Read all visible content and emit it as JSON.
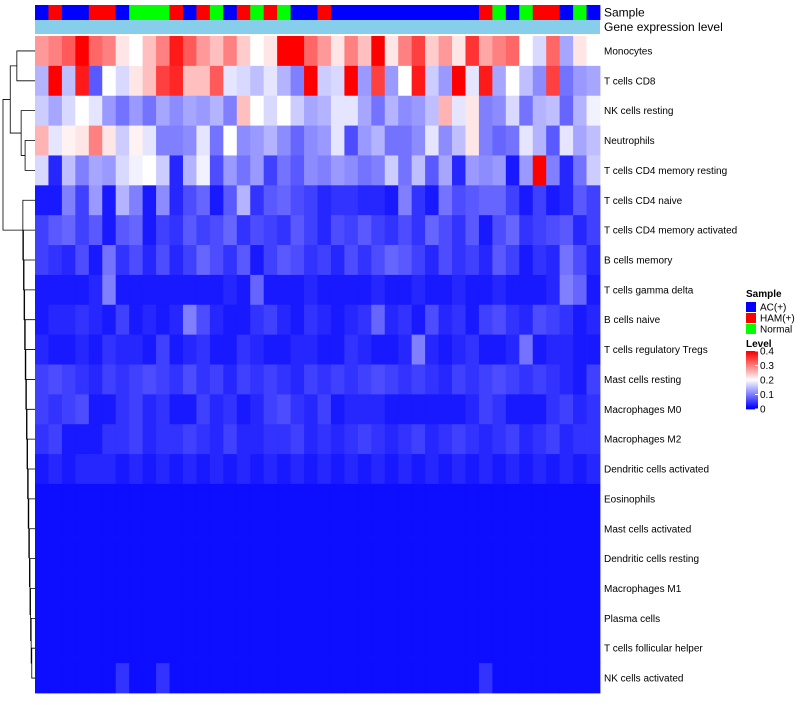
{
  "chart_data": {
    "type": "heatmap",
    "annotation_tracks": [
      "Sample",
      "Gene expression level"
    ],
    "annotation_color": "#87CEEB",
    "sample_groups": [
      "AC(+)",
      "HAM(+)",
      "Normal"
    ],
    "sample_group_colors": {
      "AC(+)": "#0000FF",
      "HAM(+)": "#FF0000",
      "Normal": "#00FF00"
    },
    "sample_annotation": [
      0,
      1,
      0,
      0,
      1,
      1,
      0,
      2,
      2,
      2,
      1,
      0,
      1,
      2,
      0,
      1,
      2,
      1,
      2,
      0,
      0,
      1,
      0,
      0,
      0,
      0,
      0,
      0,
      0,
      0,
      0,
      0,
      0,
      1,
      2,
      0,
      2,
      1,
      1,
      0,
      2,
      0
    ],
    "rows": [
      "Monocytes",
      "T cells CD8",
      "NK cells resting",
      "Neutrophils",
      "T cells CD4 memory resting",
      "T cells CD4 naive",
      "T cells CD4 memory activated",
      "B cells memory",
      "T cells gamma delta",
      "B cells naive",
      "T cells regulatory  Tregs",
      "Mast cells resting",
      "Macrophages M0",
      "Macrophages M2",
      "Dendritic cells activated",
      "Eosinophils",
      "Mast cells activated",
      "Dendritic cells resting",
      "Macrophages M1",
      "Plasma cells",
      "T cells follicular helper",
      "NK cells activated"
    ],
    "values": [
      [
        0.28,
        0.3,
        0.33,
        0.4,
        0.32,
        0.3,
        0.22,
        0.2,
        0.25,
        0.3,
        0.38,
        0.33,
        0.28,
        0.25,
        0.3,
        0.24,
        0.2,
        0.22,
        0.4,
        0.4,
        0.32,
        0.28,
        0.22,
        0.3,
        0.25,
        0.4,
        0.22,
        0.3,
        0.35,
        0.24,
        0.28,
        0.22,
        0.36,
        0.27,
        0.3,
        0.32,
        0.2,
        0.17,
        0.32,
        0.13,
        0.22,
        0.2
      ],
      [
        0.14,
        0.4,
        0.15,
        0.38,
        0.07,
        0.2,
        0.17,
        0.22,
        0.25,
        0.35,
        0.37,
        0.25,
        0.25,
        0.33,
        0.18,
        0.17,
        0.15,
        0.18,
        0.14,
        0.1,
        0.4,
        0.16,
        0.17,
        0.4,
        0.12,
        0.35,
        0.12,
        0.2,
        0.38,
        0.16,
        0.12,
        0.4,
        0.18,
        0.38,
        0.13,
        0.2,
        0.15,
        0.11,
        0.35,
        0.09,
        0.12,
        0.13
      ],
      [
        0.16,
        0.13,
        0.17,
        0.2,
        0.18,
        0.12,
        0.09,
        0.12,
        0.09,
        0.13,
        0.11,
        0.13,
        0.12,
        0.14,
        0.1,
        0.25,
        0.2,
        0.17,
        0.2,
        0.16,
        0.13,
        0.14,
        0.18,
        0.18,
        0.13,
        0.09,
        0.14,
        0.11,
        0.12,
        0.15,
        0.26,
        0.18,
        0.22,
        0.1,
        0.11,
        0.17,
        0.09,
        0.14,
        0.15,
        0.08,
        0.14,
        0.19
      ],
      [
        0.26,
        0.18,
        0.21,
        0.22,
        0.3,
        0.22,
        0.16,
        0.21,
        0.18,
        0.1,
        0.1,
        0.11,
        0.18,
        0.09,
        0.2,
        0.11,
        0.12,
        0.14,
        0.11,
        0.08,
        0.11,
        0.12,
        0.18,
        0.06,
        0.12,
        0.14,
        0.09,
        0.09,
        0.11,
        0.18,
        0.11,
        0.15,
        0.22,
        0.1,
        0.08,
        0.09,
        0.18,
        0.14,
        0.07,
        0.18,
        0.13,
        0.15
      ],
      [
        0.17,
        0.03,
        0.15,
        0.1,
        0.13,
        0.12,
        0.17,
        0.19,
        0.2,
        0.16,
        0.03,
        0.14,
        0.19,
        0.06,
        0.12,
        0.09,
        0.12,
        0.05,
        0.09,
        0.07,
        0.11,
        0.1,
        0.12,
        0.11,
        0.09,
        0.1,
        0.16,
        0.09,
        0.15,
        0.07,
        0.13,
        0.03,
        0.12,
        0.11,
        0.12,
        0.02,
        0.12,
        0.4,
        0.1,
        0.03,
        0.09,
        0.16
      ],
      [
        0.02,
        0.02,
        0.1,
        0.05,
        0.12,
        0.02,
        0.14,
        0.1,
        0.02,
        0.11,
        0.03,
        0.06,
        0.08,
        0.02,
        0.07,
        0.14,
        0.04,
        0.07,
        0.08,
        0.06,
        0.05,
        0.03,
        0.04,
        0.04,
        0.03,
        0.03,
        0.02,
        0.1,
        0.04,
        0.02,
        0.09,
        0.06,
        0.07,
        0.08,
        0.08,
        0.05,
        0.02,
        0.05,
        0.02,
        0.03,
        0.07,
        0.05
      ],
      [
        0.05,
        0.07,
        0.08,
        0.05,
        0.07,
        0.02,
        0.07,
        0.08,
        0.02,
        0.05,
        0.04,
        0.07,
        0.05,
        0.06,
        0.08,
        0.04,
        0.06,
        0.05,
        0.04,
        0.07,
        0.05,
        0.03,
        0.06,
        0.05,
        0.07,
        0.05,
        0.04,
        0.06,
        0.04,
        0.08,
        0.06,
        0.04,
        0.07,
        0.02,
        0.06,
        0.08,
        0.04,
        0.05,
        0.06,
        0.07,
        0.03,
        0.05
      ],
      [
        0.05,
        0.04,
        0.03,
        0.06,
        0.02,
        0.09,
        0.04,
        0.06,
        0.03,
        0.06,
        0.03,
        0.05,
        0.08,
        0.06,
        0.04,
        0.07,
        0.02,
        0.05,
        0.07,
        0.06,
        0.04,
        0.05,
        0.03,
        0.06,
        0.04,
        0.06,
        0.08,
        0.07,
        0.05,
        0.03,
        0.06,
        0.04,
        0.05,
        0.03,
        0.07,
        0.05,
        0.02,
        0.04,
        0.03,
        0.09,
        0.06,
        0.03
      ],
      [
        0.02,
        0.02,
        0.02,
        0.02,
        0.03,
        0.1,
        0.02,
        0.02,
        0.02,
        0.02,
        0.02,
        0.02,
        0.02,
        0.02,
        0.03,
        0.02,
        0.08,
        0.02,
        0.02,
        0.02,
        0.03,
        0.02,
        0.02,
        0.02,
        0.02,
        0.03,
        0.02,
        0.02,
        0.03,
        0.02,
        0.02,
        0.03,
        0.02,
        0.02,
        0.03,
        0.02,
        0.02,
        0.02,
        0.03,
        0.1,
        0.08,
        0.02
      ],
      [
        0.02,
        0.03,
        0.03,
        0.04,
        0.03,
        0.02,
        0.05,
        0.02,
        0.03,
        0.02,
        0.03,
        0.1,
        0.06,
        0.03,
        0.02,
        0.02,
        0.04,
        0.05,
        0.03,
        0.02,
        0.04,
        0.03,
        0.02,
        0.03,
        0.04,
        0.08,
        0.03,
        0.04,
        0.02,
        0.06,
        0.03,
        0.04,
        0.02,
        0.05,
        0.06,
        0.04,
        0.03,
        0.06,
        0.05,
        0.04,
        0.02,
        0.03
      ],
      [
        0.03,
        0.02,
        0.02,
        0.03,
        0.02,
        0.04,
        0.03,
        0.03,
        0.02,
        0.05,
        0.02,
        0.03,
        0.04,
        0.02,
        0.02,
        0.04,
        0.03,
        0.02,
        0.02,
        0.03,
        0.03,
        0.02,
        0.02,
        0.04,
        0.03,
        0.02,
        0.02,
        0.03,
        0.1,
        0.03,
        0.02,
        0.03,
        0.04,
        0.02,
        0.02,
        0.03,
        0.09,
        0.02,
        0.03,
        0.03,
        0.02,
        0.02
      ],
      [
        0.05,
        0.06,
        0.05,
        0.04,
        0.03,
        0.05,
        0.04,
        0.05,
        0.06,
        0.05,
        0.04,
        0.06,
        0.04,
        0.05,
        0.03,
        0.05,
        0.04,
        0.05,
        0.04,
        0.03,
        0.05,
        0.04,
        0.05,
        0.04,
        0.05,
        0.06,
        0.05,
        0.04,
        0.05,
        0.04,
        0.03,
        0.05,
        0.04,
        0.05,
        0.06,
        0.05,
        0.04,
        0.05,
        0.04,
        0.03,
        0.02,
        0.05
      ],
      [
        0.05,
        0.04,
        0.05,
        0.06,
        0.02,
        0.02,
        0.04,
        0.05,
        0.03,
        0.04,
        0.02,
        0.02,
        0.05,
        0.03,
        0.04,
        0.02,
        0.03,
        0.05,
        0.06,
        0.04,
        0.03,
        0.05,
        0.02,
        0.03,
        0.03,
        0.03,
        0.02,
        0.02,
        0.02,
        0.02,
        0.02,
        0.02,
        0.03,
        0.05,
        0.04,
        0.02,
        0.02,
        0.02,
        0.04,
        0.05,
        0.03,
        0.04
      ],
      [
        0.04,
        0.05,
        0.02,
        0.02,
        0.02,
        0.04,
        0.04,
        0.05,
        0.03,
        0.04,
        0.04,
        0.05,
        0.04,
        0.03,
        0.05,
        0.03,
        0.03,
        0.04,
        0.04,
        0.05,
        0.03,
        0.04,
        0.03,
        0.04,
        0.05,
        0.04,
        0.03,
        0.04,
        0.05,
        0.03,
        0.04,
        0.05,
        0.04,
        0.03,
        0.04,
        0.05,
        0.03,
        0.04,
        0.05,
        0.03,
        0.04,
        0.04
      ],
      [
        0.02,
        0.03,
        0.02,
        0.03,
        0.03,
        0.03,
        0.02,
        0.03,
        0.02,
        0.03,
        0.02,
        0.03,
        0.02,
        0.03,
        0.02,
        0.03,
        0.02,
        0.03,
        0.02,
        0.03,
        0.02,
        0.03,
        0.02,
        0.03,
        0.02,
        0.03,
        0.02,
        0.03,
        0.02,
        0.03,
        0.02,
        0.03,
        0.02,
        0.03,
        0.02,
        0.03,
        0.02,
        0.03,
        0.02,
        0.03,
        0.02,
        0.03
      ],
      [
        0.01,
        0.01,
        0.01,
        0.01,
        0.01,
        0.01,
        0.01,
        0.01,
        0.01,
        0.01,
        0.01,
        0.01,
        0.01,
        0.01,
        0.01,
        0.01,
        0.01,
        0.01,
        0.01,
        0.01,
        0.01,
        0.01,
        0.01,
        0.01,
        0.01,
        0.01,
        0.01,
        0.01,
        0.01,
        0.01,
        0.01,
        0.01,
        0.01,
        0.01,
        0.01,
        0.01,
        0.01,
        0.01,
        0.01,
        0.01,
        0.01,
        0.01
      ],
      [
        0.01,
        0.01,
        0.01,
        0.01,
        0.01,
        0.01,
        0.01,
        0.01,
        0.01,
        0.01,
        0.01,
        0.01,
        0.01,
        0.01,
        0.01,
        0.01,
        0.01,
        0.01,
        0.01,
        0.01,
        0.01,
        0.01,
        0.01,
        0.01,
        0.01,
        0.01,
        0.01,
        0.01,
        0.01,
        0.01,
        0.01,
        0.01,
        0.01,
        0.01,
        0.01,
        0.01,
        0.01,
        0.01,
        0.01,
        0.01,
        0.01,
        0.01
      ],
      [
        0.01,
        0.01,
        0.01,
        0.01,
        0.01,
        0.01,
        0.01,
        0.01,
        0.01,
        0.01,
        0.01,
        0.01,
        0.01,
        0.01,
        0.01,
        0.01,
        0.01,
        0.01,
        0.01,
        0.01,
        0.01,
        0.01,
        0.01,
        0.01,
        0.01,
        0.01,
        0.01,
        0.01,
        0.01,
        0.01,
        0.01,
        0.01,
        0.01,
        0.01,
        0.01,
        0.01,
        0.01,
        0.01,
        0.01,
        0.01,
        0.01,
        0.01
      ],
      [
        0.01,
        0.01,
        0.01,
        0.01,
        0.01,
        0.01,
        0.01,
        0.01,
        0.01,
        0.01,
        0.01,
        0.01,
        0.01,
        0.01,
        0.01,
        0.01,
        0.01,
        0.01,
        0.01,
        0.01,
        0.01,
        0.01,
        0.01,
        0.01,
        0.01,
        0.01,
        0.01,
        0.01,
        0.01,
        0.01,
        0.01,
        0.01,
        0.01,
        0.01,
        0.01,
        0.01,
        0.01,
        0.01,
        0.01,
        0.01,
        0.01,
        0.01
      ],
      [
        0.01,
        0.01,
        0.01,
        0.01,
        0.01,
        0.01,
        0.01,
        0.01,
        0.01,
        0.01,
        0.01,
        0.01,
        0.01,
        0.01,
        0.01,
        0.01,
        0.01,
        0.01,
        0.01,
        0.01,
        0.01,
        0.01,
        0.01,
        0.01,
        0.01,
        0.01,
        0.01,
        0.01,
        0.01,
        0.01,
        0.01,
        0.01,
        0.01,
        0.01,
        0.01,
        0.01,
        0.01,
        0.01,
        0.01,
        0.01,
        0.01,
        0.01
      ],
      [
        0.01,
        0.01,
        0.01,
        0.01,
        0.01,
        0.01,
        0.01,
        0.01,
        0.01,
        0.01,
        0.01,
        0.01,
        0.01,
        0.01,
        0.01,
        0.01,
        0.01,
        0.01,
        0.01,
        0.01,
        0.01,
        0.01,
        0.01,
        0.01,
        0.01,
        0.01,
        0.01,
        0.01,
        0.01,
        0.01,
        0.01,
        0.01,
        0.01,
        0.01,
        0.01,
        0.01,
        0.01,
        0.01,
        0.01,
        0.01,
        0.01,
        0.01
      ],
      [
        0.01,
        0.01,
        0.01,
        0.01,
        0.01,
        0.01,
        0.04,
        0.01,
        0.01,
        0.04,
        0.01,
        0.01,
        0.01,
        0.01,
        0.01,
        0.01,
        0.01,
        0.01,
        0.01,
        0.01,
        0.01,
        0.01,
        0.01,
        0.01,
        0.01,
        0.01,
        0.01,
        0.01,
        0.01,
        0.01,
        0.01,
        0.01,
        0.01,
        0.04,
        0.01,
        0.01,
        0.01,
        0.01,
        0.01,
        0.01,
        0.01,
        0.01
      ]
    ],
    "color_scale": {
      "min": 0,
      "max": 0.4,
      "low": "#0000FF",
      "mid": "#FFFFFF",
      "high": "#FF0000",
      "midpoint": 0.2
    },
    "legend": {
      "sample_title": "Sample",
      "level_title": "Level",
      "level_ticks": [
        0.4,
        0.3,
        0.2,
        0.1,
        0
      ],
      "level_tick_labels": [
        "0.4",
        "0.3",
        "0.2",
        "0.1",
        "0"
      ],
      "placement": "right"
    },
    "dendrogram": {
      "side": "left",
      "rows": true
    }
  }
}
